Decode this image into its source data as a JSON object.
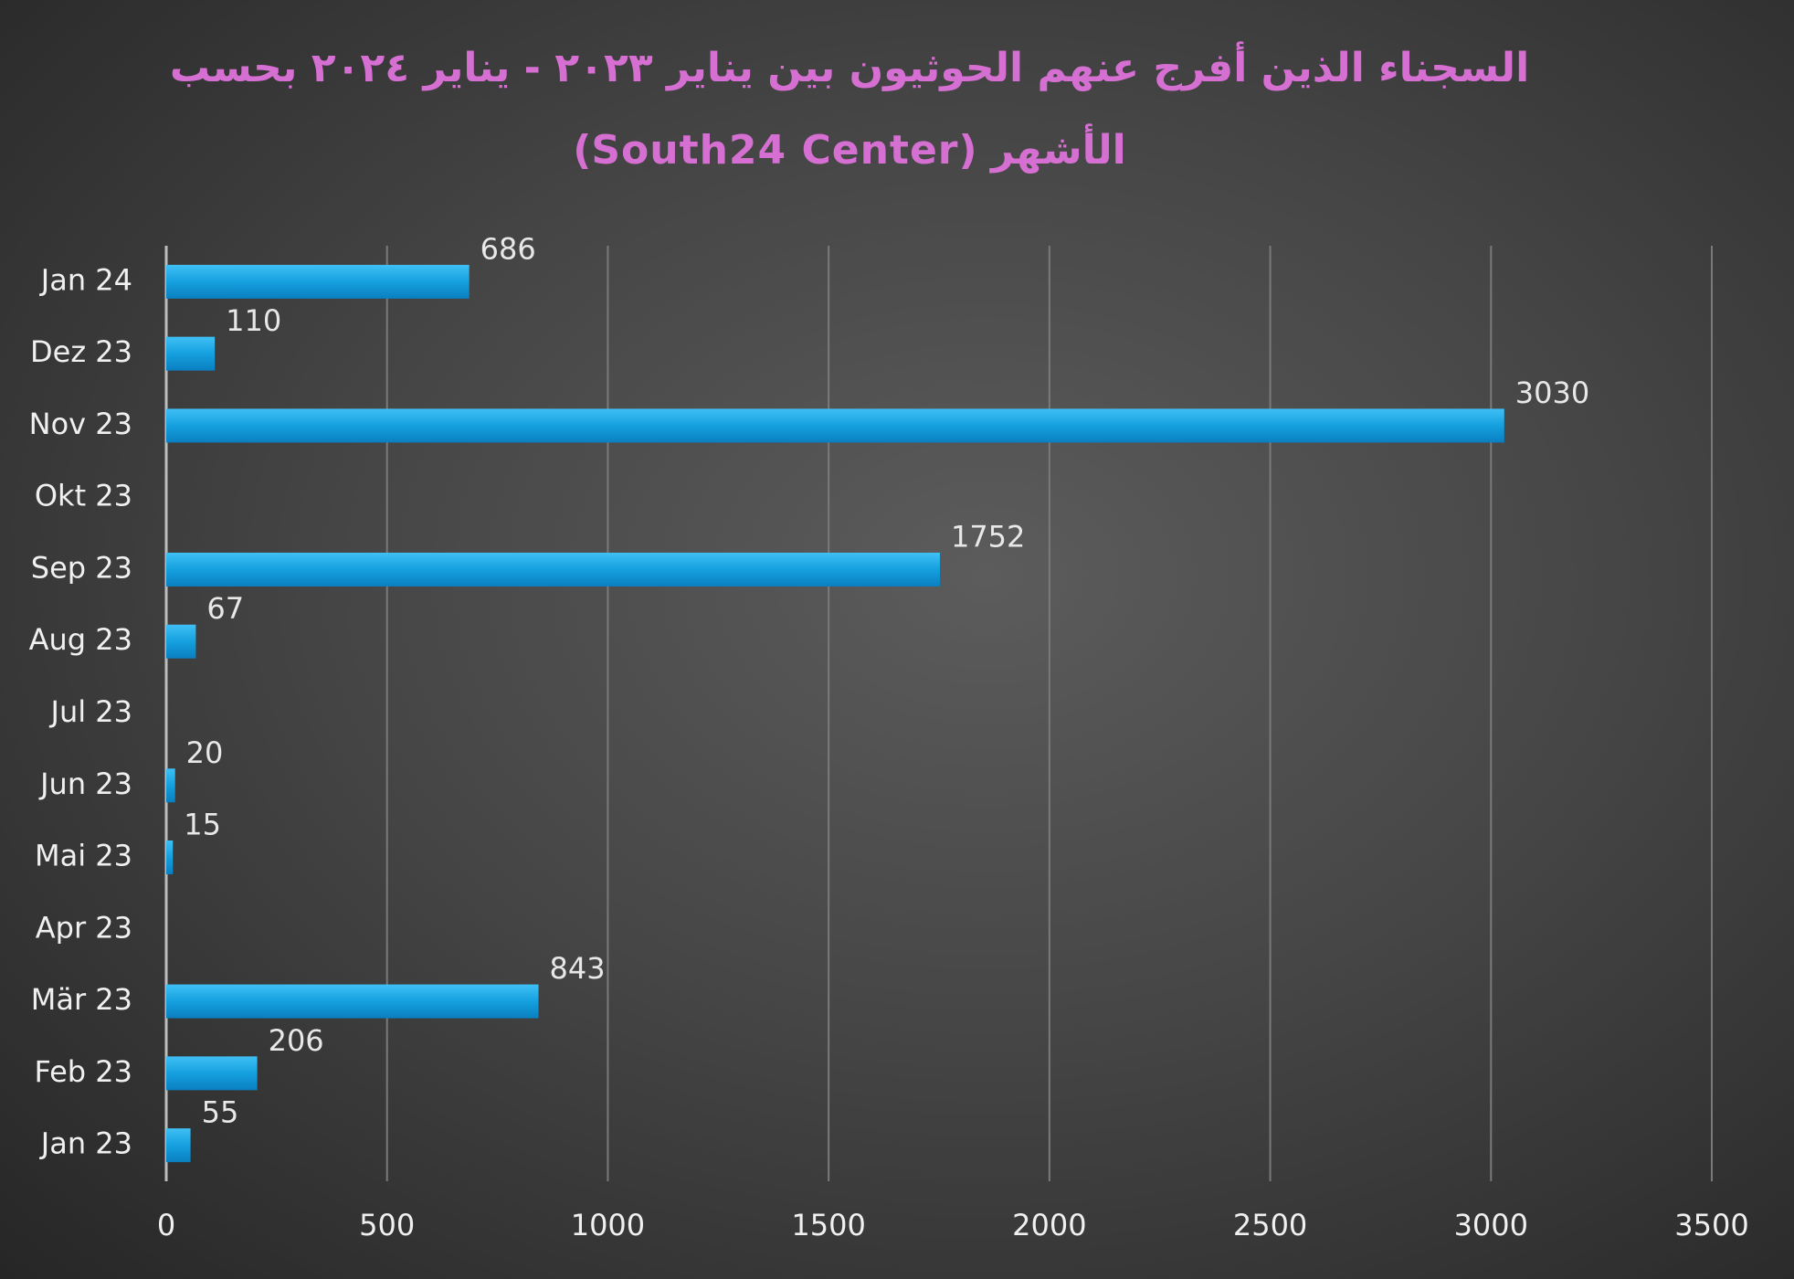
{
  "chart_data": {
    "type": "bar",
    "orientation": "horizontal",
    "title": "السجناء الذين أفرج عنهم الحوثيون بين يناير ٢٠٢٣ - يناير ٢٠٢٤ بحسب الأشهر (South24 Center)",
    "categories": [
      "Jan 23",
      "Feb 23",
      "Mär 23",
      "Apr 23",
      "Mai 23",
      "Jun 23",
      "Jul 23",
      "Aug 23",
      "Sep 23",
      "Okt 23",
      "Nov 23",
      "Dez 23",
      "Jan 24"
    ],
    "values": [
      55,
      206,
      843,
      null,
      15,
      20,
      null,
      67,
      1752,
      null,
      3030,
      110,
      686
    ],
    "color": "#15a0df",
    "xlim": [
      0,
      3500
    ],
    "xticks": [
      0,
      500,
      1000,
      1500,
      2000,
      2500,
      3000,
      3500
    ],
    "grid": true
  }
}
